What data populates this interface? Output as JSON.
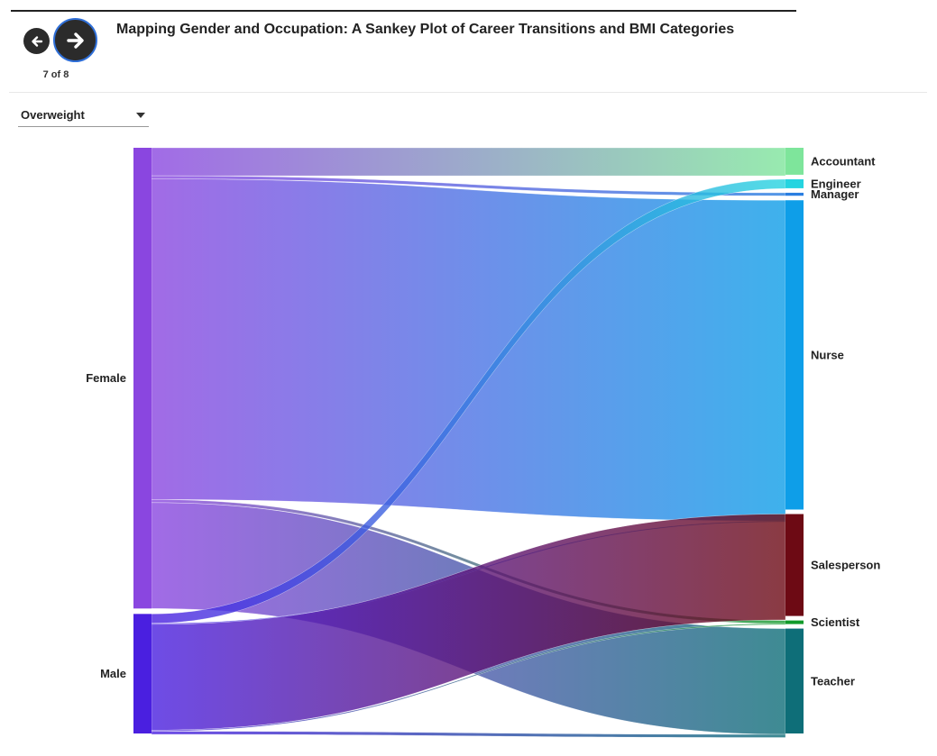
{
  "header": {
    "title": "Mapping Gender and Occupation: A Sankey Plot of Career Transitions and BMI Categories",
    "counter": "7 of 8",
    "prev_icon": "arrow-left-icon",
    "next_icon": "arrow-right-icon"
  },
  "filter": {
    "selected": "Overweight",
    "icon": "chevron-down-icon"
  },
  "chart_data": {
    "type": "sankey",
    "sources": [
      {
        "name": "Female",
        "color": "#8a46e0"
      },
      {
        "name": "Male",
        "color": "#4a1fe0"
      }
    ],
    "targets": [
      {
        "name": "Accountant",
        "color": "#7ee59b"
      },
      {
        "name": "Engineer",
        "color": "#25d4e0"
      },
      {
        "name": "Manager",
        "color": "#2a7ee0"
      },
      {
        "name": "Nurse",
        "color": "#0e9ee8"
      },
      {
        "name": "Salesperson",
        "color": "#6d0a14"
      },
      {
        "name": "Scientist",
        "color": "#119a2a"
      },
      {
        "name": "Teacher",
        "color": "#0e6e78"
      }
    ],
    "links": [
      {
        "source": "Female",
        "target": "Accountant",
        "value": 9
      },
      {
        "source": "Female",
        "target": "Manager",
        "value": 1
      },
      {
        "source": "Female",
        "target": "Nurse",
        "value": 103
      },
      {
        "source": "Female",
        "target": "Scientist",
        "value": 1
      },
      {
        "source": "Female",
        "target": "Teacher",
        "value": 34
      },
      {
        "source": "Male",
        "target": "Engineer",
        "value": 3
      },
      {
        "source": "Male",
        "target": "Nurse",
        "value": 0.2
      },
      {
        "source": "Male",
        "target": "Salesperson",
        "value": 34
      },
      {
        "source": "Male",
        "target": "Scientist",
        "value": 0.2
      },
      {
        "source": "Male",
        "target": "Teacher",
        "value": 1
      }
    ]
  }
}
